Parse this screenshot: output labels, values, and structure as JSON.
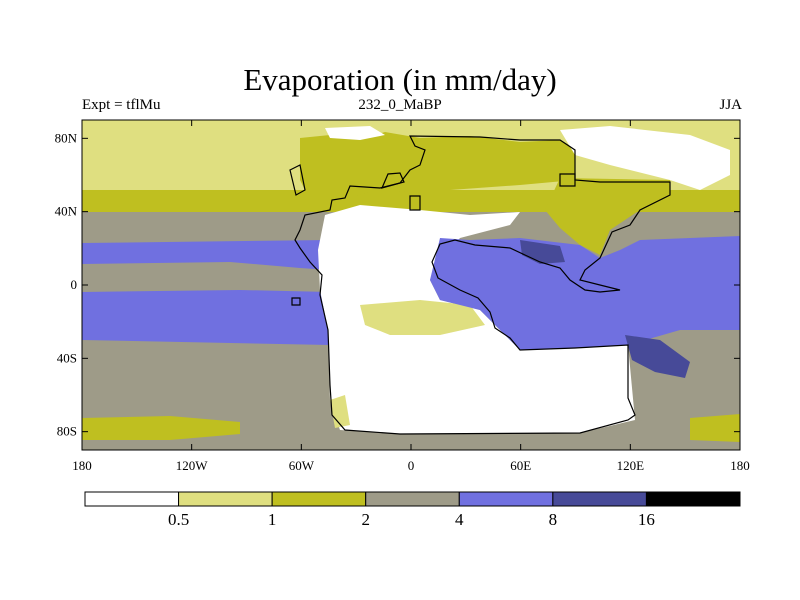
{
  "title": "Evaporation (in mm/day)",
  "experiment_label": "Expt = tflMu",
  "period_label": "232_0_MaBP",
  "season_label": "JJA",
  "map": {
    "lon_range": [
      -180,
      180
    ],
    "lat_range": [
      -90,
      90
    ],
    "x_ticks": [
      {
        "value": -180,
        "label": "180"
      },
      {
        "value": -120,
        "label": "120W"
      },
      {
        "value": -60,
        "label": "60W"
      },
      {
        "value": 0,
        "label": "0"
      },
      {
        "value": 60,
        "label": "60E"
      },
      {
        "value": 120,
        "label": "120E"
      },
      {
        "value": 180,
        "label": "180"
      }
    ],
    "y_ticks": [
      {
        "value": 80,
        "label": "80N"
      },
      {
        "value": 40,
        "label": "40N"
      },
      {
        "value": 0,
        "label": "0"
      },
      {
        "value": -40,
        "label": "40S"
      },
      {
        "value": -80,
        "label": "80S"
      }
    ],
    "legend": {
      "boundaries": [
        "0.5",
        "1",
        "2",
        "4",
        "8",
        "16"
      ],
      "colors": [
        "#ffffff",
        "#dfdf80",
        "#bfbf20",
        "#9e9b88",
        "#7070e0",
        "#474a98",
        "#000000"
      ]
    }
  }
}
